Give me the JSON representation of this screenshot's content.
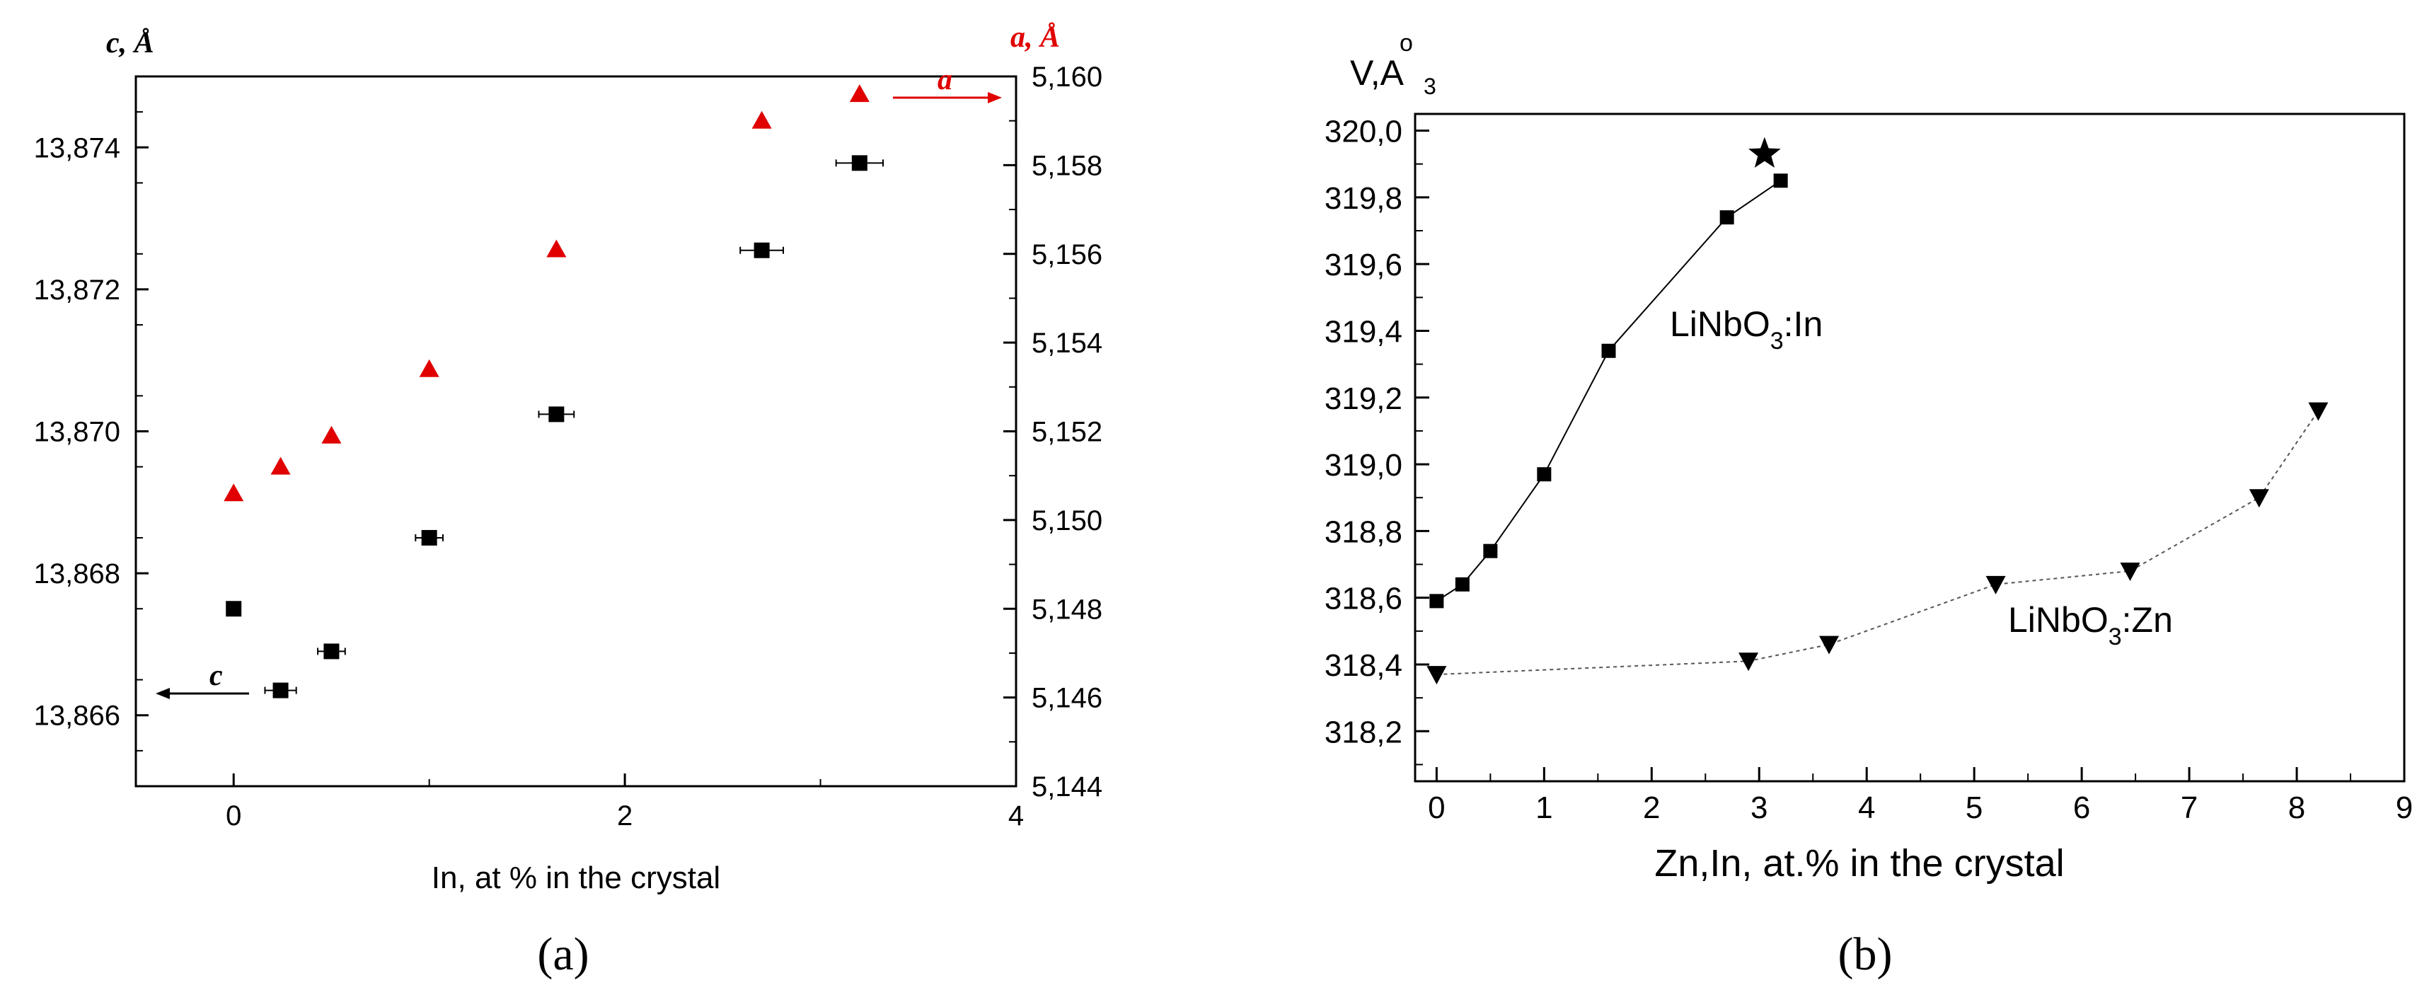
{
  "panel_labels": {
    "a": "(a)",
    "b": "(b)"
  },
  "colors": {
    "a_series": "#e00000",
    "c_series": "#000000",
    "axis": "#000000",
    "dotted": "#555555"
  },
  "chart_data": [
    {
      "type": "scatter",
      "panel": "a",
      "xlabel": "In, at % in the crystal",
      "y_left_label": "c, Å",
      "y_right_label": "a, Å",
      "xlim": [
        -0.5,
        4
      ],
      "x_ticks": [
        0,
        2,
        4
      ],
      "ylim_left": [
        13.865,
        13.875
      ],
      "y_left_ticks": [
        "13,866",
        "13,868",
        "13,870",
        "13,872",
        "13,874"
      ],
      "y_left_tick_values": [
        13.866,
        13.868,
        13.87,
        13.872,
        13.874
      ],
      "ylim_right": [
        5.144,
        5.16
      ],
      "y_right_ticks": [
        "5,144",
        "5,146",
        "5,148",
        "5,150",
        "5,152",
        "5,154",
        "5,156",
        "5,158",
        "5,160"
      ],
      "y_right_tick_values": [
        5.144,
        5.146,
        5.148,
        5.15,
        5.152,
        5.154,
        5.156,
        5.158,
        5.16
      ],
      "series": [
        {
          "name": "c",
          "axis": "left",
          "marker": "square",
          "x": [
            0,
            0.24,
            0.5,
            1.0,
            1.65,
            2.7,
            3.2
          ],
          "y": [
            13.8675,
            13.86635,
            13.8669,
            13.8685,
            13.87024,
            13.87255,
            13.87378
          ],
          "x_err": [
            0,
            0.08,
            0.07,
            0.07,
            0.09,
            0.11,
            0.12
          ]
        },
        {
          "name": "a",
          "axis": "right",
          "marker": "triangle",
          "x": [
            0,
            0.24,
            0.5,
            1.0,
            1.65,
            2.7,
            3.2
          ],
          "y": [
            5.1506,
            5.1512,
            5.1519,
            5.1534,
            5.1561,
            5.159,
            5.1596
          ]
        }
      ],
      "annotations": [
        {
          "text": "a",
          "arrow": "right",
          "axis": "right"
        },
        {
          "text": "c",
          "arrow": "left",
          "axis": "left"
        }
      ]
    },
    {
      "type": "line",
      "panel": "b",
      "xlabel": "Zn,In, at.% in the crystal",
      "ylabel": "V,Å³",
      "xlim": [
        -0.2,
        9
      ],
      "x_ticks": [
        "0",
        "1",
        "2",
        "3",
        "4",
        "5",
        "6",
        "7",
        "8",
        "9"
      ],
      "x_tick_values": [
        0,
        1,
        2,
        3,
        4,
        5,
        6,
        7,
        8,
        9
      ],
      "ylim": [
        318.05,
        320.05
      ],
      "y_ticks": [
        "318,2",
        "318,4",
        "318,6",
        "318,8",
        "319,0",
        "319,2",
        "319,4",
        "319,6",
        "319,8",
        "320,0"
      ],
      "y_tick_values": [
        318.2,
        318.4,
        318.6,
        318.8,
        319.0,
        319.2,
        319.4,
        319.6,
        319.8,
        320.0
      ],
      "series": [
        {
          "name": "LiNbO3:In",
          "label_main": "LiNbO",
          "label_sub": "3",
          "label_tail": ":In",
          "marker": "square",
          "line": "solid",
          "x": [
            0,
            0.24,
            0.5,
            1.0,
            1.6,
            2.7,
            3.2
          ],
          "y": [
            318.59,
            318.64,
            318.74,
            318.97,
            319.34,
            319.74,
            319.85
          ]
        },
        {
          "name": "LiNbO3:Zn",
          "label_main": "LiNbO",
          "label_sub": "3",
          "label_tail": ":Zn",
          "marker": "triangle-down",
          "line": "dotted",
          "x": [
            0,
            2.9,
            3.65,
            5.2,
            6.45,
            7.65,
            8.2
          ],
          "y": [
            318.37,
            318.41,
            318.46,
            318.64,
            318.68,
            318.9,
            319.16
          ]
        }
      ],
      "extra_points": [
        {
          "marker": "star",
          "x": 3.05,
          "y": 319.93
        }
      ]
    }
  ]
}
